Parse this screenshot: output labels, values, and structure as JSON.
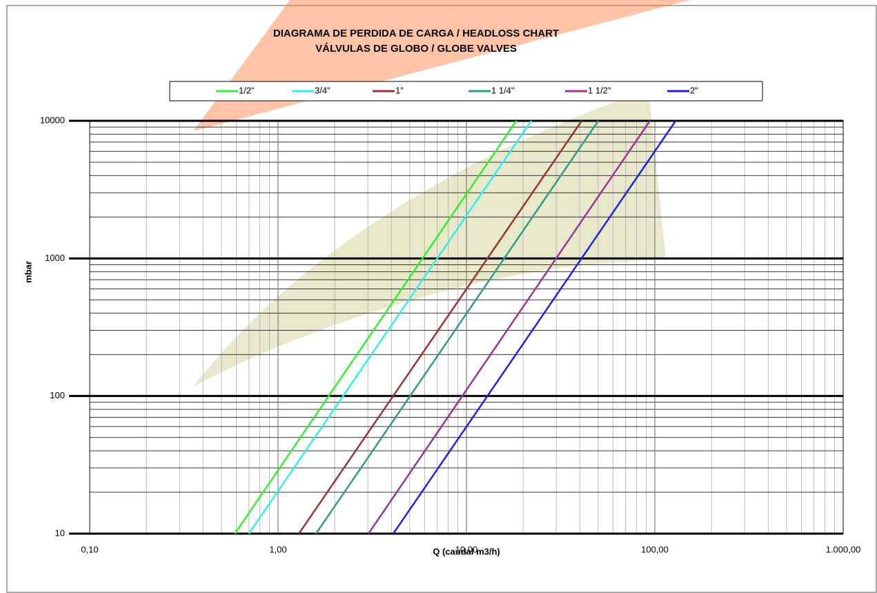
{
  "chart_data": {
    "type": "line",
    "title": "DIAGRAMA DE PERDIDA DE CARGA / HEADLOSS CHART",
    "subtitle": "VÁLVULAS DE GLOBO / GLOBE VALVES",
    "xlabel": "Q (caudal m3/h)",
    "ylabel": "mbar",
    "xscale": "log",
    "yscale": "log",
    "grid": true,
    "legend": "top",
    "xlim": [
      0.1,
      1000
    ],
    "ylim": [
      10,
      10000
    ],
    "xticks": [
      {
        "value": 0.1,
        "label": "0,10"
      },
      {
        "value": 1,
        "label": "1,00"
      },
      {
        "value": 10,
        "label": "10,00"
      },
      {
        "value": 100,
        "label": "100,00"
      },
      {
        "value": 1000,
        "label": "1.000,00"
      }
    ],
    "yticks": [
      10,
      100,
      1000,
      10000
    ],
    "series": [
      {
        "name": "1/2\"",
        "color": "#33ee33",
        "x": [
          0.59,
          18.4
        ],
        "values": [
          10,
          10000
        ]
      },
      {
        "name": "3/4\"",
        "color": "#33eeee",
        "x": [
          0.7,
          22.1
        ],
        "values": [
          10,
          10000
        ]
      },
      {
        "name": "1\"",
        "color": "#993333",
        "x": [
          1.29,
          40.9
        ],
        "values": [
          10,
          10000
        ]
      },
      {
        "name": "1 1/4\"",
        "color": "#339988",
        "x": [
          1.59,
          50.1
        ],
        "values": [
          10,
          10000
        ]
      },
      {
        "name": "1 1/2\"",
        "color": "#993399",
        "x": [
          3.02,
          94.2
        ],
        "values": [
          10,
          10000
        ]
      },
      {
        "name": "2\"",
        "color": "#1f1fe6",
        "x": [
          4.09,
          129
        ],
        "values": [
          10,
          10000
        ]
      }
    ]
  }
}
